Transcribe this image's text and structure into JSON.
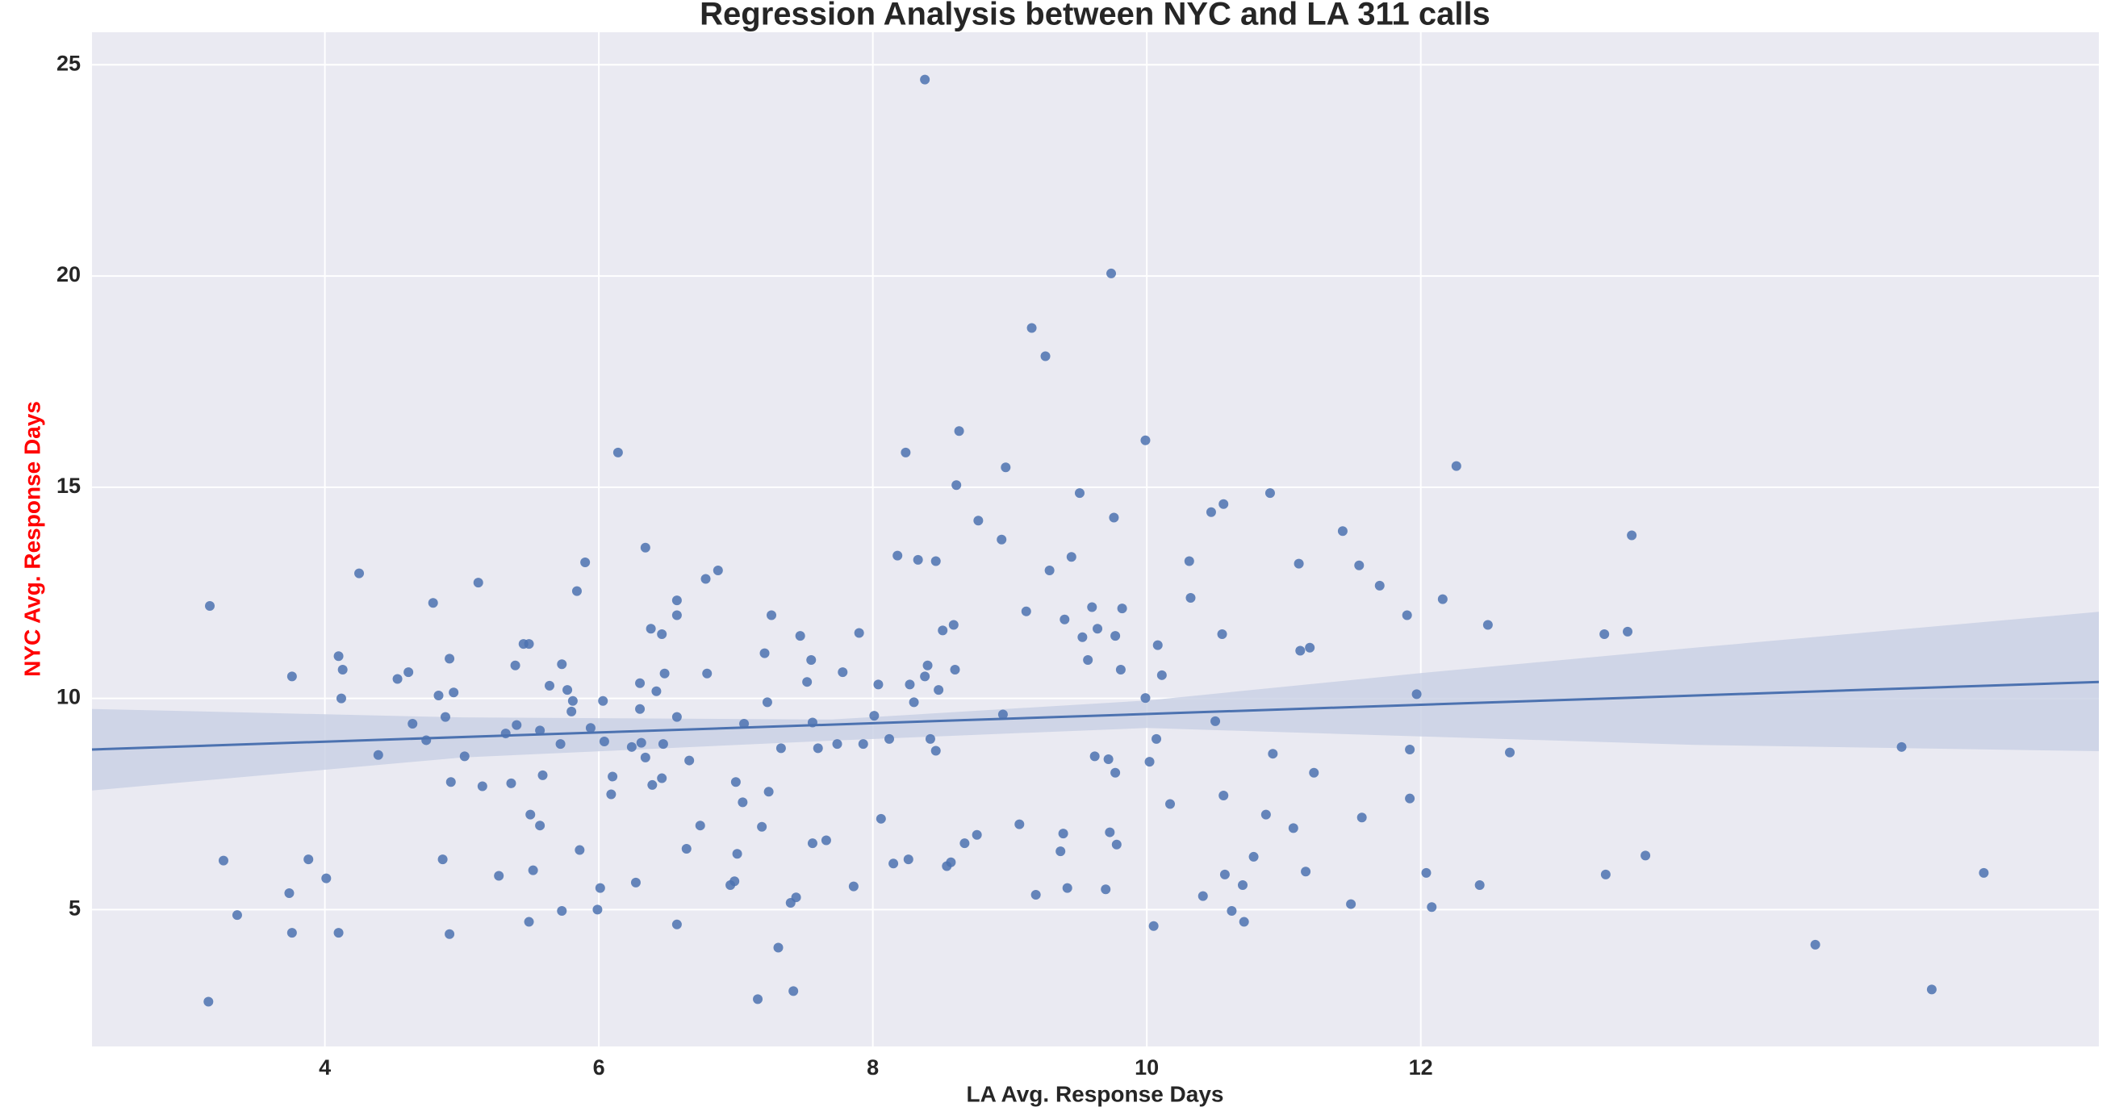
{
  "chart_data": {
    "type": "scatter",
    "title": "Regression Analysis between NYC and LA 311 calls",
    "x_label": "LA Avg. Response Days",
    "y_label": "NYC Avg. Response Days",
    "color": "#4c72b0",
    "line_color": "#4c72b0",
    "band_color": "#c8cfe3",
    "background": "#eaeaf2",
    "grid": true,
    "xlim": [
      2.3,
      16.95
    ],
    "ylim": [
      1.76,
      25.77
    ],
    "xticks": [
      4,
      6,
      8,
      10,
      12
    ],
    "yticks": [
      5,
      10,
      15,
      20,
      25
    ],
    "x": [
      3.16,
      3.26,
      3.36,
      3.15,
      3.76,
      3.74,
      3.76,
      3.88,
      4.01,
      4.1,
      4.1,
      4.13,
      4.12,
      4.25,
      4.39,
      4.53,
      4.61,
      4.64,
      4.74,
      4.79,
      4.83,
      4.86,
      4.88,
      4.91,
      4.92,
      4.91,
      4.94,
      5.02,
      5.12,
      5.15,
      5.27,
      5.32,
      5.36,
      5.39,
      5.4,
      5.45,
      5.49,
      5.49,
      5.5,
      5.52,
      5.57,
      5.57,
      5.59,
      5.64,
      5.72,
      5.73,
      5.73,
      5.77,
      5.8,
      5.81,
      5.84,
      5.86,
      5.9,
      5.94,
      5.99,
      6.01,
      6.03,
      6.04,
      6.09,
      6.1,
      6.14,
      6.24,
      6.27,
      6.3,
      6.3,
      6.31,
      6.34,
      6.34,
      6.38,
      6.39,
      6.42,
      6.46,
      6.46,
      6.48,
      6.47,
      6.57,
      6.57,
      6.57,
      6.57,
      6.64,
      6.66,
      6.74,
      6.78,
      6.79,
      6.87,
      6.96,
      6.99,
      7.0,
      7.01,
      7.05,
      7.06,
      7.16,
      7.19,
      7.21,
      7.23,
      7.24,
      7.26,
      7.31,
      7.33,
      7.4,
      7.42,
      7.44,
      7.47,
      7.52,
      7.55,
      7.56,
      7.56,
      7.6,
      7.66,
      7.74,
      7.78,
      7.86,
      7.9,
      7.93,
      8.01,
      8.04,
      8.06,
      8.12,
      8.15,
      8.18,
      8.24,
      8.26,
      8.27,
      8.3,
      8.33,
      8.38,
      8.38,
      8.4,
      8.42,
      8.46,
      8.46,
      8.48,
      8.51,
      8.54,
      8.57,
      8.59,
      8.6,
      8.61,
      8.63,
      8.67,
      8.76,
      8.77,
      8.94,
      8.95,
      8.97,
      9.07,
      9.12,
      9.16,
      9.19,
      9.26,
      9.29,
      9.37,
      9.39,
      9.4,
      9.42,
      9.45,
      9.51,
      9.53,
      9.57,
      9.6,
      9.62,
      9.64,
      9.7,
      9.72,
      9.73,
      9.74,
      9.76,
      9.77,
      9.77,
      9.78,
      9.81,
      9.82,
      9.99,
      9.99,
      10.02,
      10.05,
      10.07,
      10.08,
      10.11,
      10.17,
      10.31,
      10.32,
      10.41,
      10.47,
      10.5,
      10.55,
      10.56,
      10.56,
      10.57,
      10.62,
      10.7,
      10.71,
      10.78,
      10.87,
      10.9,
      10.92,
      11.07,
      11.11,
      11.12,
      11.16,
      11.19,
      11.22,
      11.43,
      11.49,
      11.55,
      11.57,
      11.7,
      11.9,
      11.92,
      11.92,
      11.97,
      12.04,
      12.08,
      12.16,
      12.26,
      12.43,
      12.49,
      12.65,
      13.35,
      13.34,
      13.51,
      13.54,
      13.64,
      14.88,
      15.51,
      15.73,
      16.11
    ],
    "values": [
      12.19,
      6.16,
      4.87,
      2.82,
      10.52,
      5.39,
      4.45,
      6.19,
      5.74,
      4.45,
      11.0,
      10.68,
      10.0,
      12.96,
      8.66,
      10.46,
      10.62,
      9.4,
      9.01,
      12.26,
      10.07,
      6.19,
      9.56,
      10.94,
      8.02,
      4.42,
      10.14,
      8.63,
      12.74,
      7.92,
      5.8,
      9.17,
      7.99,
      10.78,
      9.37,
      11.29,
      11.29,
      4.71,
      7.25,
      5.93,
      9.24,
      6.99,
      8.18,
      10.3,
      8.92,
      10.81,
      4.97,
      10.2,
      9.69,
      9.94,
      12.54,
      6.41,
      13.22,
      9.3,
      5.0,
      5.51,
      9.94,
      8.98,
      7.73,
      8.15,
      15.82,
      8.85,
      5.64,
      10.36,
      9.75,
      8.95,
      8.6,
      13.57,
      11.65,
      7.95,
      10.17,
      11.52,
      8.11,
      10.59,
      8.92,
      4.65,
      11.97,
      12.32,
      9.56,
      6.44,
      8.53,
      6.99,
      12.83,
      10.59,
      13.03,
      5.58,
      5.67,
      8.02,
      6.32,
      7.54,
      9.4,
      2.88,
      6.96,
      11.07,
      9.91,
      7.79,
      11.97,
      4.1,
      8.82,
      5.16,
      3.07,
      5.29,
      11.48,
      10.39,
      10.91,
      9.43,
      6.57,
      8.82,
      6.64,
      8.92,
      10.62,
      5.55,
      11.55,
      8.92,
      9.59,
      10.33,
      7.15,
      9.04,
      6.09,
      13.38,
      15.82,
      6.19,
      10.33,
      9.91,
      13.28,
      24.65,
      10.52,
      10.78,
      9.04,
      8.76,
      13.25,
      10.2,
      11.61,
      6.03,
      6.12,
      11.74,
      10.68,
      15.05,
      16.33,
      6.57,
      6.77,
      14.21,
      13.76,
      9.62,
      15.47,
      7.02,
      12.06,
      18.77,
      5.35,
      18.1,
      13.03,
      6.38,
      6.8,
      11.87,
      5.51,
      13.35,
      14.86,
      11.45,
      10.91,
      12.16,
      8.63,
      11.65,
      5.48,
      8.56,
      6.83,
      20.06,
      14.28,
      11.48,
      8.24,
      6.54,
      10.68,
      12.13,
      16.11,
      10.01,
      8.5,
      4.61,
      9.04,
      11.26,
      10.55,
      7.5,
      13.25,
      12.38,
      5.32,
      14.41,
      9.46,
      11.52,
      14.6,
      7.7,
      5.83,
      4.97,
      5.58,
      4.71,
      6.25,
      7.25,
      14.86,
      8.69,
      6.93,
      13.19,
      11.13,
      5.9,
      11.2,
      8.24,
      13.96,
      5.13,
      13.15,
      7.18,
      12.67,
      11.97,
      8.79,
      7.63,
      10.1,
      5.87,
      5.06,
      12.35,
      15.5,
      5.58,
      11.74,
      8.72,
      5.83,
      11.52,
      11.58,
      13.86,
      6.28,
      4.17,
      8.85,
      3.11,
      5.87
    ],
    "regression": {
      "x": [
        2.3,
        16.95
      ],
      "values": [
        8.79,
        10.39
      ]
    },
    "confidence_band": {
      "x": [
        2.3,
        5,
        7.7,
        10,
        12,
        14,
        16.95
      ],
      "lower": [
        7.82,
        8.6,
        9.0,
        9.3,
        9.1,
        8.9,
        8.75
      ],
      "upper": [
        9.75,
        9.55,
        9.5,
        9.95,
        10.6,
        11.2,
        12.05
      ]
    }
  }
}
